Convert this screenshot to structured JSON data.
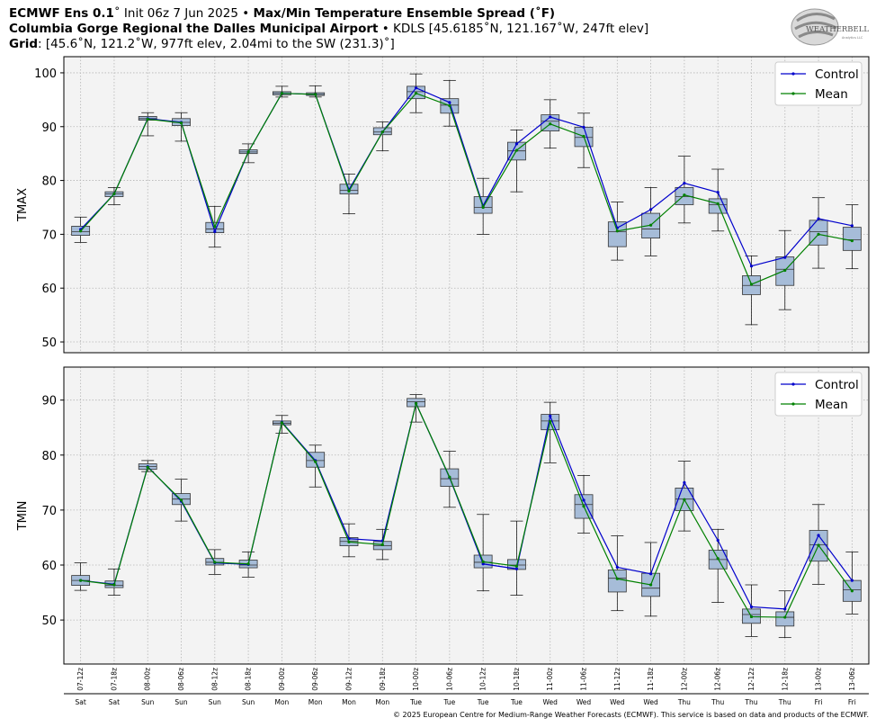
{
  "header": {
    "model": "ECMWF Ens 0.1",
    "init": "˚ Init 06z 7 Jun 2025 •",
    "product": "Max/Min Temperature Ensemble Spread (˚F)",
    "site_name": "Columbia Gorge Regional the Dalles Municipal Airport",
    "site_info": "• KDLS [45.6185˚N, 121.167˚W, 247ft elev]",
    "grid_label": "Grid",
    "grid_info": ": [45.6˚N, 121.2˚W, 977ft elev, 2.04mi to the SW (231.3)˚]"
  },
  "logo": {
    "text": "WEATHERBELL",
    "sub": "Analytics LLC"
  },
  "footer": {
    "copyright": "© 2025 European Centre for Medium-Range Weather Forecasts (ECMWF). This service is based on data and products of the ECMWF."
  },
  "colors": {
    "control": "#0000cc",
    "mean": "#008000",
    "box": "#a6bcd8",
    "panel_bg": "#f3f3f3"
  },
  "legend": {
    "control": "Control",
    "mean": "Mean",
    "placement": "top-right"
  },
  "chart_data": [
    {
      "type": "box",
      "ylabel": "TMAX",
      "ylim": [
        48,
        103
      ],
      "yticks": [
        50,
        60,
        70,
        80,
        90,
        100
      ],
      "grid": true,
      "categories": [
        "07-12z",
        "07-18z",
        "08-00z",
        "08-06z",
        "08-12z",
        "08-18z",
        "09-00z",
        "09-06z",
        "09-12z",
        "09-18z",
        "10-00z",
        "10-06z",
        "10-12z",
        "10-18z",
        "11-00z",
        "11-06z",
        "11-12z",
        "11-18z",
        "12-00z",
        "12-06z",
        "12-12z",
        "12-18z",
        "13-00z",
        "13-06z"
      ],
      "days": [
        "Sat",
        "Sat",
        "Sun",
        "Sun",
        "Sun",
        "Sun",
        "Mon",
        "Mon",
        "Mon",
        "Mon",
        "Tue",
        "Tue",
        "Tue",
        "Tue",
        "Wed",
        "Wed",
        "Wed",
        "Wed",
        "Thu",
        "Thu",
        "Thu",
        "Thu",
        "Fri",
        "Fri"
      ],
      "whisker_low": [
        68.5,
        75.5,
        88.3,
        87.3,
        67.6,
        83.3,
        95.5,
        95.5,
        73.8,
        85.5,
        92.6,
        90.1,
        70.0,
        77.9,
        86.0,
        82.4,
        65.2,
        66.0,
        72.1,
        70.6,
        53.2,
        56.0,
        63.7,
        63.6
      ],
      "q1": [
        69.8,
        77.0,
        91.2,
        90.2,
        70.3,
        85.0,
        95.9,
        95.8,
        77.5,
        88.5,
        95.2,
        92.5,
        73.9,
        83.8,
        89.2,
        86.3,
        67.7,
        69.3,
        75.5,
        73.9,
        58.8,
        60.5,
        68.0,
        67.0
      ],
      "median": [
        70.5,
        77.5,
        91.5,
        90.8,
        71.0,
        85.3,
        96.2,
        96.0,
        78.2,
        89.0,
        96.5,
        94.0,
        75.0,
        85.5,
        91.0,
        88.0,
        70.5,
        71.0,
        77.0,
        75.5,
        60.5,
        63.5,
        70.5,
        69.0
      ],
      "q3": [
        71.5,
        77.9,
        91.9,
        91.5,
        72.2,
        85.7,
        96.5,
        96.3,
        79.3,
        89.8,
        97.5,
        95.2,
        77.0,
        87.1,
        92.2,
        89.9,
        72.3,
        73.9,
        78.7,
        76.6,
        62.3,
        65.8,
        72.6,
        71.3
      ],
      "whisker_high": [
        73.2,
        78.7,
        92.6,
        92.6,
        75.2,
        86.8,
        97.5,
        97.6,
        81.2,
        90.9,
        99.8,
        98.6,
        80.4,
        89.4,
        95.0,
        92.5,
        76.0,
        78.7,
        84.5,
        82.1,
        66.0,
        70.7,
        76.8,
        75.5
      ],
      "series": [
        {
          "name": "Control",
          "values": [
            70.9,
            77.5,
            91.5,
            90.8,
            70.5,
            85.3,
            96.2,
            96.0,
            78.3,
            89.0,
            97.2,
            94.5,
            75.3,
            86.8,
            91.8,
            89.9,
            71.2,
            74.6,
            79.5,
            77.8,
            64.1,
            65.7,
            72.9,
            71.6
          ]
        },
        {
          "name": "Mean",
          "values": [
            70.6,
            77.5,
            91.4,
            90.7,
            71.4,
            85.3,
            96.2,
            96.0,
            78.0,
            89.0,
            96.2,
            93.9,
            75.0,
            85.6,
            90.5,
            88.2,
            70.6,
            71.7,
            77.3,
            75.7,
            60.7,
            63.3,
            70.0,
            68.8
          ]
        }
      ]
    },
    {
      "type": "box",
      "ylabel": "TMIN",
      "ylim": [
        42,
        96
      ],
      "yticks": [
        50,
        60,
        70,
        80,
        90
      ],
      "grid": true,
      "categories": [
        "07-12z",
        "07-18z",
        "08-00z",
        "08-06z",
        "08-12z",
        "08-18z",
        "09-00z",
        "09-06z",
        "09-12z",
        "09-18z",
        "10-00z",
        "10-06z",
        "10-12z",
        "10-18z",
        "11-00z",
        "11-06z",
        "11-12z",
        "11-18z",
        "12-00z",
        "12-06z",
        "12-12z",
        "12-18z",
        "13-00z",
        "13-06z"
      ],
      "days": [
        "Sat",
        "Sat",
        "Sun",
        "Sun",
        "Sun",
        "Sun",
        "Mon",
        "Mon",
        "Mon",
        "Mon",
        "Tue",
        "Tue",
        "Tue",
        "Tue",
        "Wed",
        "Wed",
        "Wed",
        "Wed",
        "Thu",
        "Thu",
        "Thu",
        "Thu",
        "Fri",
        "Fri"
      ],
      "whisker_low": [
        55.4,
        54.5,
        77.0,
        68.0,
        58.3,
        57.8,
        84.0,
        74.2,
        61.5,
        61.0,
        86.0,
        70.5,
        55.3,
        54.5,
        78.6,
        65.8,
        51.7,
        50.7,
        66.2,
        53.2,
        47.0,
        46.8,
        56.5,
        51.1
      ],
      "q1": [
        56.3,
        55.9,
        77.4,
        71.0,
        60.0,
        59.5,
        85.5,
        77.8,
        63.5,
        62.8,
        88.8,
        74.3,
        59.5,
        59.2,
        84.6,
        68.5,
        55.1,
        54.3,
        69.9,
        59.3,
        49.4,
        48.9,
        60.7,
        53.4
      ],
      "median": [
        57.2,
        56.3,
        77.9,
        72.0,
        60.5,
        60.0,
        85.8,
        79.0,
        64.3,
        63.5,
        89.7,
        75.7,
        60.5,
        60.0,
        86.2,
        71.0,
        57.6,
        55.8,
        72.0,
        61.0,
        51.0,
        50.5,
        63.7,
        55.5
      ],
      "q3": [
        58.1,
        57.1,
        78.4,
        73.0,
        61.2,
        60.9,
        86.2,
        80.5,
        65.0,
        64.3,
        90.3,
        77.5,
        61.8,
        61.0,
        87.4,
        72.8,
        59.1,
        58.5,
        74.0,
        62.7,
        52.0,
        51.5,
        66.3,
        57.2
      ],
      "whisker_high": [
        60.4,
        59.3,
        79.0,
        75.6,
        62.8,
        62.4,
        87.2,
        81.8,
        67.5,
        66.5,
        91.0,
        80.7,
        69.2,
        68.0,
        89.6,
        76.3,
        65.3,
        64.1,
        78.9,
        66.5,
        56.4,
        55.3,
        71.0,
        62.4
      ],
      "series": [
        {
          "name": "Control",
          "values": [
            57.2,
            56.5,
            77.9,
            71.6,
            60.4,
            60.1,
            86.0,
            79.0,
            64.8,
            64.4,
            89.4,
            75.9,
            60.2,
            59.3,
            87.1,
            71.8,
            59.6,
            58.4,
            75.0,
            64.5,
            52.4,
            52.0,
            65.4,
            57.2
          ]
        },
        {
          "name": "Mean",
          "values": [
            57.2,
            56.4,
            77.8,
            71.8,
            60.5,
            60.2,
            85.9,
            78.8,
            64.2,
            63.7,
            89.4,
            76.0,
            60.6,
            59.8,
            86.1,
            70.7,
            57.5,
            56.4,
            71.9,
            61.2,
            50.6,
            50.5,
            63.6,
            55.3
          ]
        }
      ]
    }
  ]
}
